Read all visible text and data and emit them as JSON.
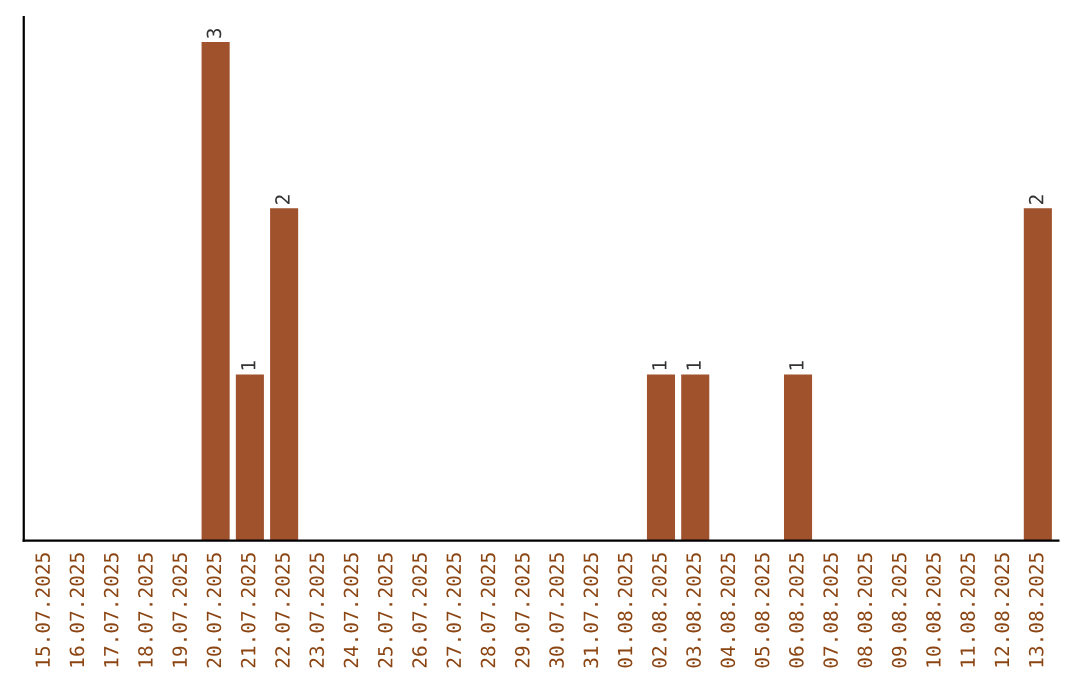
{
  "chart_data": {
    "type": "bar",
    "categories": [
      "15.07.2025",
      "16.07.2025",
      "17.07.2025",
      "18.07.2025",
      "19.07.2025",
      "20.07.2025",
      "21.07.2025",
      "22.07.2025",
      "23.07.2025",
      "24.07.2025",
      "25.07.2025",
      "26.07.2025",
      "27.07.2025",
      "28.07.2025",
      "29.07.2025",
      "30.07.2025",
      "31.07.2025",
      "01.08.2025",
      "02.08.2025",
      "03.08.2025",
      "04.08.2025",
      "05.08.2025",
      "06.08.2025",
      "07.08.2025",
      "08.08.2025",
      "09.08.2025",
      "10.08.2025",
      "11.08.2025",
      "12.08.2025",
      "13.08.2025"
    ],
    "values": [
      0,
      0,
      0,
      0,
      0,
      3,
      1,
      2,
      0,
      0,
      0,
      0,
      0,
      0,
      0,
      0,
      0,
      0,
      1,
      1,
      0,
      0,
      1,
      0,
      0,
      0,
      0,
      0,
      0,
      2
    ],
    "value_labels": [
      null,
      null,
      null,
      null,
      null,
      "3",
      "1",
      "2",
      null,
      null,
      null,
      null,
      null,
      null,
      null,
      null,
      null,
      null,
      "1",
      "1",
      null,
      null,
      "1",
      null,
      null,
      null,
      null,
      null,
      null,
      "2"
    ],
    "color": "#a0522d",
    "tick_labels": "x",
    "grid": false
  }
}
